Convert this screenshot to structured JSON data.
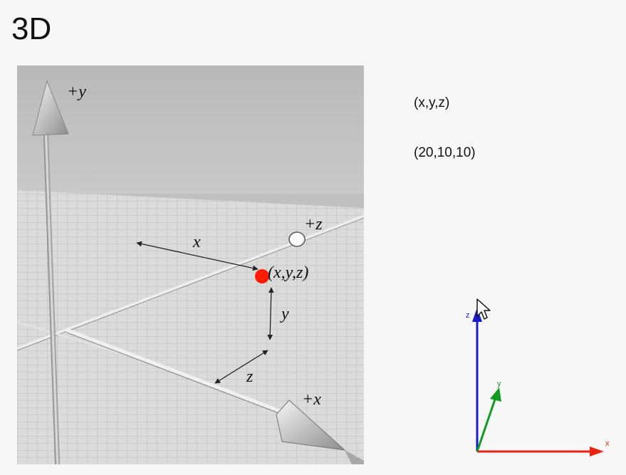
{
  "title": "3D",
  "scene": {
    "labels": {
      "plus_y": "+y",
      "plus_z": "+z",
      "plus_x": "+x",
      "x": "x",
      "y": "y",
      "z": "z",
      "point": "(x,y,z)"
    },
    "colors": {
      "point": "#ff1a00",
      "floor": "#d3d3d3",
      "sky": "#bdbdbd"
    }
  },
  "side": {
    "coord_format": "(x,y,z)",
    "coord_value": "(20,10,10)"
  },
  "gizmo": {
    "labels": {
      "x": "x",
      "y": "y",
      "z": "z"
    },
    "colors": {
      "x": "#ee2211",
      "y": "#119922",
      "z": "#1a1acc"
    }
  }
}
